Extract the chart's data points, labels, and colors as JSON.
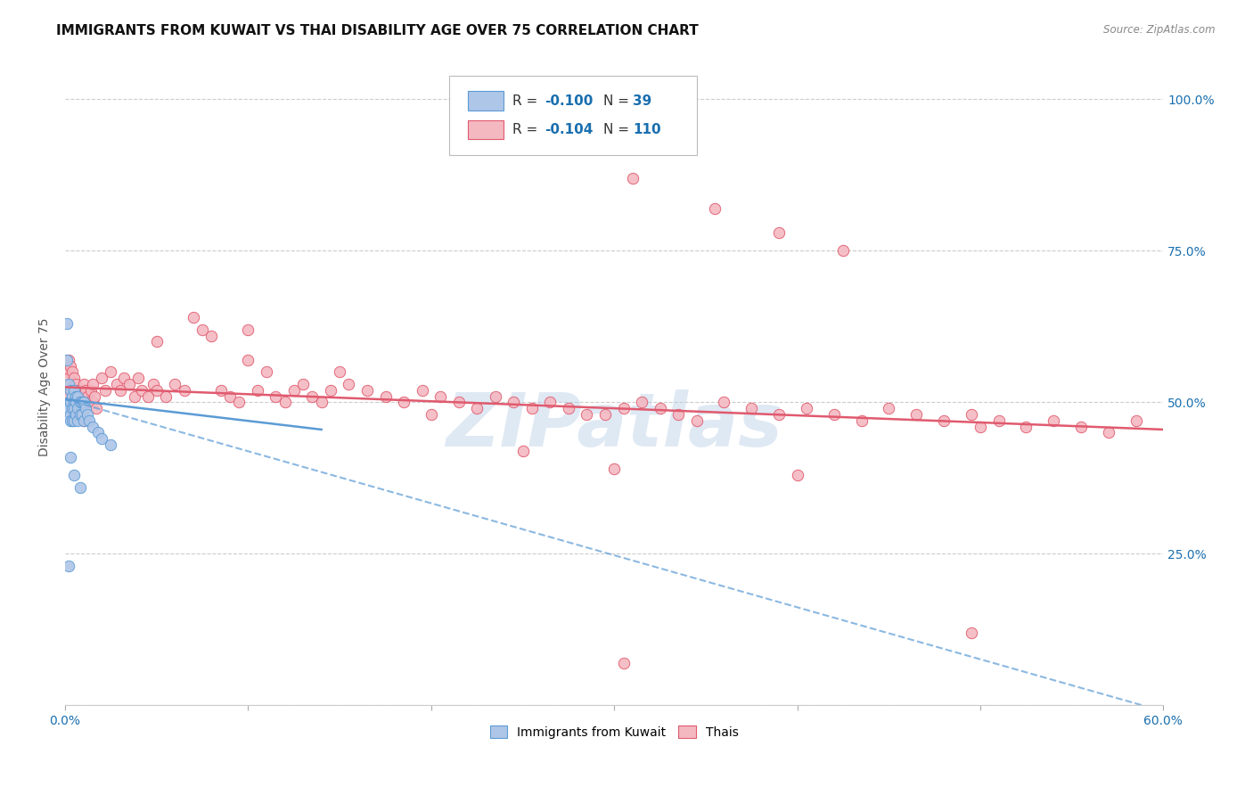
{
  "title": "IMMIGRANTS FROM KUWAIT VS THAI DISABILITY AGE OVER 75 CORRELATION CHART",
  "source": "Source: ZipAtlas.com",
  "ylabel": "Disability Age Over 75",
  "x_min": 0.0,
  "x_max": 0.6,
  "y_min": 0.0,
  "y_max": 1.05,
  "x_ticks": [
    0.0,
    0.1,
    0.2,
    0.3,
    0.4,
    0.5,
    0.6
  ],
  "x_tick_labels_show": [
    "0.0%",
    "",
    "",
    "",
    "",
    "",
    "60.0%"
  ],
  "y_ticks": [
    0.0,
    0.25,
    0.5,
    0.75,
    1.0
  ],
  "y_tick_labels_right": [
    "",
    "25.0%",
    "50.0%",
    "75.0%",
    "100.0%"
  ],
  "kuwait_color": "#aec6e8",
  "kuwait_edge": "#5b9bd5",
  "thai_color": "#f4b8c1",
  "thai_edge": "#e05a6e",
  "kuwait_trend_color": "#5b9bd5",
  "thai_trend_color": "#e05a6e",
  "kuwait_trend_y0": 0.505,
  "kuwait_trend_y1": 0.455,
  "kuwait_trend_x0": 0.0,
  "kuwait_trend_x1": 0.14,
  "dashed_trend_y0": 0.505,
  "dashed_trend_y1": -0.01,
  "dashed_trend_x0": 0.0,
  "dashed_trend_x1": 0.6,
  "thai_trend_y0": 0.525,
  "thai_trend_y1": 0.455,
  "watermark_text": "ZIPatlas",
  "bg_color": "#ffffff",
  "grid_color": "#cccccc",
  "title_fontsize": 11,
  "label_fontsize": 10,
  "tick_fontsize": 10,
  "legend_r1": "R = -0.100   N =  39",
  "legend_r2": "R = -0.104   N = 110"
}
